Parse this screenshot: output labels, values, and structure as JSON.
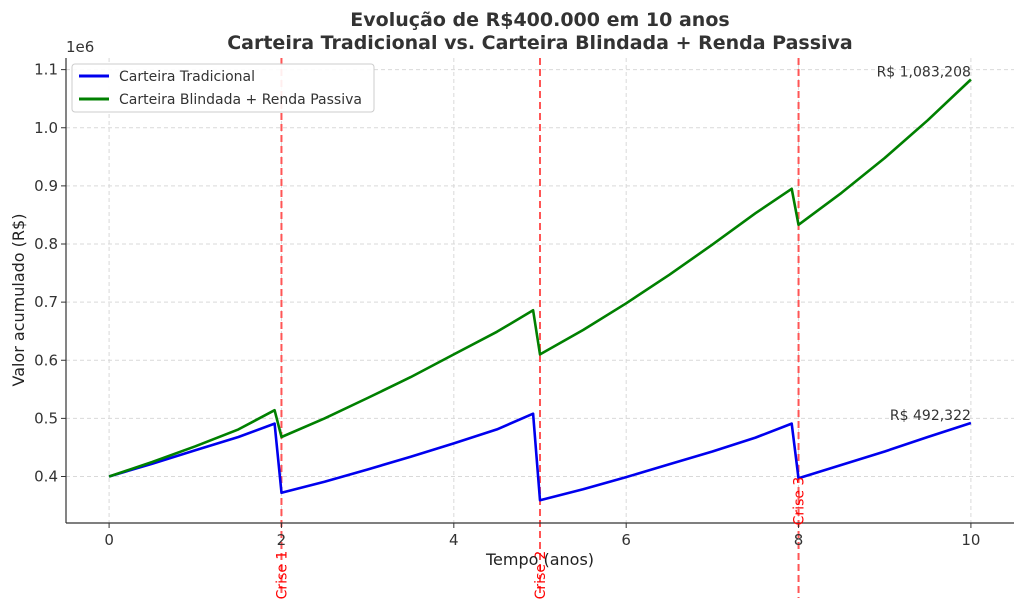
{
  "chart_data": {
    "type": "line",
    "title": "Evolução de R$400.000 em 10 anos",
    "subtitle": "Carteira Tradicional vs. Carteira Blindada + Renda Passiva",
    "xlabel": "Tempo (anos)",
    "ylabel": "Valor acumulado (R$)",
    "y_offset_label": "1e6",
    "xlim": [
      -0.5,
      10.5
    ],
    "ylim": [
      0.32,
      1.12
    ],
    "x_ticks": [
      0,
      2,
      4,
      6,
      8,
      10
    ],
    "x_tick_labels": [
      "0",
      "2",
      "4",
      "6",
      "8",
      "10"
    ],
    "y_ticks": [
      0.4,
      0.5,
      0.6,
      0.7,
      0.8,
      0.9,
      1.0,
      1.1
    ],
    "y_tick_labels": [
      "0.4",
      "0.5",
      "0.6",
      "0.7",
      "0.8",
      "0.9",
      "1.0",
      "1.1"
    ],
    "grid": true,
    "legend_position": "top-left",
    "colors": {
      "tradicional": "#0000ee",
      "blindada": "#008000",
      "crisis": "#ff5555",
      "crisis_text": "#ff0000",
      "grid": "#d9d9d9"
    },
    "series": [
      {
        "name": "Carteira Tradicional",
        "color": "#0000ee",
        "end_label": "R$ 492,322",
        "points": [
          [
            0,
            0.4
          ],
          [
            0.5,
            0.422
          ],
          [
            1.0,
            0.445
          ],
          [
            1.5,
            0.468
          ],
          [
            1.92,
            0.491
          ],
          [
            2.0,
            0.372
          ],
          [
            2.5,
            0.391
          ],
          [
            3.0,
            0.412
          ],
          [
            3.5,
            0.434
          ],
          [
            4.0,
            0.457
          ],
          [
            4.5,
            0.481
          ],
          [
            4.92,
            0.508
          ],
          [
            5.0,
            0.359
          ],
          [
            5.5,
            0.378
          ],
          [
            6.0,
            0.399
          ],
          [
            6.5,
            0.421
          ],
          [
            7.0,
            0.443
          ],
          [
            7.5,
            0.467
          ],
          [
            7.92,
            0.491
          ],
          [
            8.0,
            0.397
          ],
          [
            8.5,
            0.42
          ],
          [
            9.0,
            0.443
          ],
          [
            9.5,
            0.468
          ],
          [
            10.0,
            0.492
          ]
        ]
      },
      {
        "name": "Carteira Blindada + Renda Passiva",
        "color": "#008000",
        "end_label": "R$ 1,083,208",
        "points": [
          [
            0,
            0.4
          ],
          [
            0.5,
            0.425
          ],
          [
            1.0,
            0.452
          ],
          [
            1.5,
            0.481
          ],
          [
            1.92,
            0.514
          ],
          [
            2.0,
            0.468
          ],
          [
            2.5,
            0.5
          ],
          [
            3.0,
            0.535
          ],
          [
            3.5,
            0.571
          ],
          [
            4.0,
            0.61
          ],
          [
            4.5,
            0.649
          ],
          [
            4.92,
            0.686
          ],
          [
            5.0,
            0.61
          ],
          [
            5.5,
            0.652
          ],
          [
            6.0,
            0.698
          ],
          [
            6.5,
            0.747
          ],
          [
            7.0,
            0.799
          ],
          [
            7.5,
            0.853
          ],
          [
            7.92,
            0.895
          ],
          [
            8.0,
            0.833
          ],
          [
            8.5,
            0.888
          ],
          [
            9.0,
            0.948
          ],
          [
            9.5,
            1.013
          ],
          [
            10.0,
            1.083
          ]
        ]
      }
    ],
    "crises": [
      {
        "x": 2,
        "label": "Crise 1"
      },
      {
        "x": 5,
        "label": "Crise 2"
      },
      {
        "x": 8,
        "label": "Crise 3"
      }
    ]
  }
}
